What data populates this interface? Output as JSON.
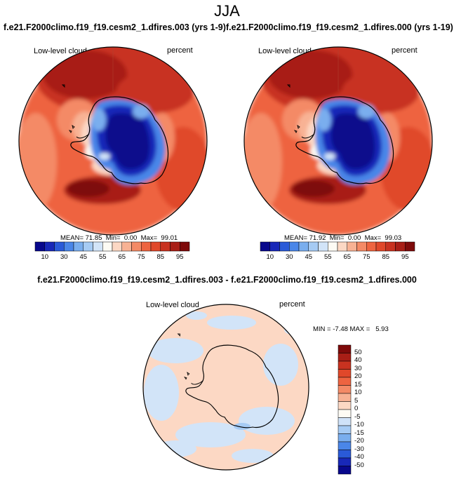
{
  "page_title": "JJA",
  "panels": [
    {
      "case_title": "f.e21.F2000climo.f19_f19.cesm2_1.dfires.003 (yrs 1-9)",
      "variable": "Low-level cloud",
      "units": "percent",
      "mean_label": "MEAN=",
      "mean": "71.85",
      "min_label": "Min=",
      "min": "0.00",
      "max_label": "Max=",
      "max": "99.01"
    },
    {
      "case_title": "f.e21.F2000climo.f19_f19.cesm2_1.dfires.000 (yrs 1-19)",
      "variable": "Low-level cloud",
      "units": "percent",
      "mean_label": "MEAN=",
      "mean": "71.92",
      "min_label": "Min=",
      "min": "0.00",
      "max_label": "Max=",
      "max": "99.03"
    }
  ],
  "colorbar": {
    "labels": [
      "10",
      "30",
      "45",
      "55",
      "65",
      "75",
      "85",
      "95"
    ],
    "levels": [
      10,
      20,
      30,
      40,
      45,
      50,
      55,
      60,
      65,
      70,
      75,
      80,
      85,
      90,
      95
    ],
    "colors": [
      "#08088c",
      "#1828b8",
      "#2a5ad8",
      "#4a86e8",
      "#7aaeee",
      "#a6cbf4",
      "#d2e4f8",
      "#fdfbf4",
      "#fcd8c4",
      "#f8b294",
      "#f48a66",
      "#ee6440",
      "#e0482a",
      "#c83220",
      "#a81e16",
      "#7e0a0a"
    ]
  },
  "difference": {
    "title": "f.e21.F2000climo.f19_f19.cesm2_1.dfires.003 - f.e21.F2000climo.f19_f19.cesm2_1.dfires.000",
    "variable": "Low-level cloud",
    "units": "percent",
    "min_label": "MIN =",
    "min": "-7.48",
    "max_label": "MAX =",
    "max": "5.93",
    "colorbar_labels": [
      "50",
      "40",
      "30",
      "20",
      "15",
      "10",
      "5",
      "0",
      "-5",
      "-10",
      "-15",
      "-20",
      "-30",
      "-40",
      "-50"
    ],
    "colorbar_colors": [
      "#7e0a0a",
      "#a81e16",
      "#c83220",
      "#e0482a",
      "#ee6440",
      "#f48a66",
      "#f8b294",
      "#fcd8c4",
      "#fdfbf4",
      "#cfe2f8",
      "#a6cbf4",
      "#7aaeee",
      "#4a86e8",
      "#2a5ad8",
      "#1828b8",
      "#08088c"
    ]
  },
  "chart_data": [
    {
      "type": "heatmap",
      "title": "Low-level cloud",
      "units": "percent",
      "season": "JJA",
      "mean": 71.85,
      "min": 0.0,
      "max": 99.01,
      "levels": [
        10,
        20,
        30,
        40,
        45,
        50,
        55,
        60,
        65,
        70,
        75,
        80,
        85,
        90,
        95
      ]
    },
    {
      "type": "heatmap",
      "title": "Low-level cloud",
      "units": "percent",
      "season": "JJA",
      "mean": 71.92,
      "min": 0.0,
      "max": 99.03,
      "levels": [
        10,
        20,
        30,
        40,
        45,
        50,
        55,
        60,
        65,
        70,
        75,
        80,
        85,
        90,
        95
      ]
    },
    {
      "type": "heatmap",
      "title": "Low-level cloud",
      "units": "percent",
      "min": -7.48,
      "max": 5.93,
      "levels": [
        -50,
        -40,
        -30,
        -20,
        -15,
        -10,
        -5,
        0,
        5,
        10,
        15,
        20,
        30,
        40,
        50
      ]
    }
  ]
}
